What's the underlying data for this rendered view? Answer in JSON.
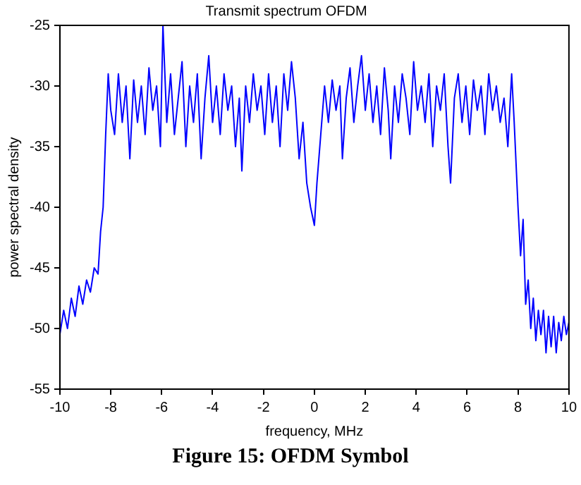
{
  "chart_data": {
    "type": "line",
    "title": "Transmit spectrum OFDM",
    "xlabel": "frequency, MHz",
    "ylabel": "power spectral density",
    "annotations": [
      "Figure 15: OFDM Symbol"
    ],
    "x": [
      -10,
      -9.85,
      -9.7,
      -9.55,
      -9.4,
      -9.25,
      -9.1,
      -8.95,
      -8.8,
      -8.65,
      -8.5,
      -8.4,
      -8.3,
      -8.2,
      -8.1,
      -8.0,
      -7.85,
      -7.7,
      -7.55,
      -7.4,
      -7.25,
      -7.1,
      -6.95,
      -6.8,
      -6.65,
      -6.5,
      -6.35,
      -6.2,
      -6.05,
      -5.95,
      -5.8,
      -5.65,
      -5.5,
      -5.35,
      -5.2,
      -5.05,
      -4.9,
      -4.75,
      -4.6,
      -4.45,
      -4.3,
      -4.15,
      -4.0,
      -3.85,
      -3.7,
      -3.55,
      -3.4,
      -3.25,
      -3.1,
      -2.95,
      -2.85,
      -2.7,
      -2.55,
      -2.4,
      -2.25,
      -2.1,
      -1.95,
      -1.8,
      -1.65,
      -1.5,
      -1.35,
      -1.2,
      -1.05,
      -0.9,
      -0.75,
      -0.6,
      -0.45,
      -0.3,
      -0.15,
      0.0,
      0.1,
      0.25,
      0.4,
      0.55,
      0.7,
      0.85,
      1.0,
      1.1,
      1.25,
      1.4,
      1.55,
      1.7,
      1.85,
      2.0,
      2.15,
      2.3,
      2.45,
      2.6,
      2.75,
      2.9,
      3.0,
      3.15,
      3.3,
      3.45,
      3.6,
      3.75,
      3.9,
      4.05,
      4.2,
      4.35,
      4.5,
      4.65,
      4.8,
      4.95,
      5.1,
      5.25,
      5.35,
      5.5,
      5.65,
      5.8,
      5.95,
      6.1,
      6.25,
      6.4,
      6.55,
      6.7,
      6.85,
      7.0,
      7.15,
      7.3,
      7.45,
      7.6,
      7.75,
      7.85,
      8.0,
      8.1,
      8.2,
      8.3,
      8.4,
      8.5,
      8.6,
      8.7,
      8.8,
      8.9,
      9.0,
      9.1,
      9.2,
      9.3,
      9.4,
      9.5,
      9.6,
      9.7,
      9.8,
      9.9,
      10.0
    ],
    "series": [
      {
        "color": "#0000ff",
        "values": [
          -50.5,
          -48.5,
          -50,
          -47.5,
          -49,
          -46.5,
          -48,
          -46,
          -47,
          -45,
          -45.5,
          -42,
          -40,
          -34,
          -29,
          -32,
          -34,
          -29,
          -33,
          -30,
          -36,
          -29.5,
          -33,
          -30,
          -34,
          -28.5,
          -32,
          -30,
          -35,
          -25,
          -33,
          -29,
          -34,
          -31,
          -28,
          -35,
          -30,
          -33,
          -29,
          -36,
          -31,
          -27.5,
          -33,
          -30,
          -34,
          -29,
          -32,
          -30,
          -35,
          -31,
          -37,
          -30,
          -33,
          -29,
          -32,
          -30,
          -34,
          -29,
          -33,
          -30,
          -35,
          -29,
          -32,
          -28,
          -31,
          -36,
          -33,
          -38,
          -40,
          -41.5,
          -38,
          -34,
          -30,
          -33,
          -29.5,
          -32,
          -30,
          -36,
          -31,
          -28.5,
          -33,
          -30,
          -27.5,
          -32,
          -29,
          -33,
          -30,
          -34,
          -28.5,
          -32,
          -36,
          -30,
          -33,
          -29,
          -31,
          -34,
          -28,
          -32,
          -30,
          -33,
          -29,
          -35,
          -30,
          -32,
          -29,
          -35,
          -38,
          -31,
          -29,
          -33,
          -30,
          -34,
          -29.5,
          -32,
          -30,
          -34,
          -29,
          -32,
          -30,
          -33,
          -31,
          -35,
          -29,
          -33,
          -40,
          -44,
          -41,
          -48,
          -46,
          -50,
          -47.5,
          -51,
          -48.5,
          -50.5,
          -48.5,
          -52,
          -49,
          -51.5,
          -49,
          -52,
          -49.5,
          -51,
          -49,
          -50.5,
          -49.5
        ]
      }
    ],
    "xlim": [
      -10,
      10
    ],
    "xticks": [
      -10,
      -8,
      -6,
      -4,
      -2,
      0,
      2,
      4,
      6,
      8,
      10
    ],
    "ylim": [
      -55,
      -25
    ],
    "yticks": [
      -55,
      -50,
      -45,
      -40,
      -35,
      -30,
      -25
    ],
    "grid": false,
    "legend": false,
    "line_style": "solid",
    "marker": "none"
  }
}
